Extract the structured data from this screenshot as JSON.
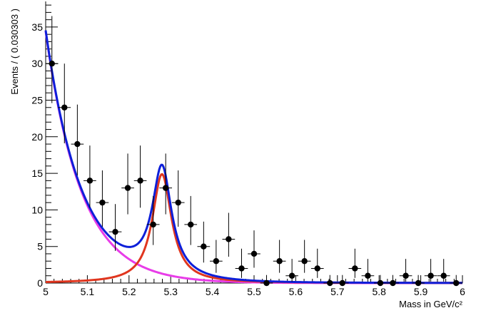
{
  "chart_data": {
    "type": "scatter",
    "title": "",
    "xlabel": "Mass in GeV/c²",
    "ylabel": "Events / ( 0.030303 )",
    "xlim": [
      5,
      6
    ],
    "ylim": [
      0,
      38.5
    ],
    "x_tick_labels": [
      "5",
      "5.1",
      "5.2",
      "5.3",
      "5.4",
      "5.5",
      "5.6",
      "5.7",
      "5.8",
      "5.9",
      "6"
    ],
    "y_tick_labels": [
      "0",
      "5",
      "10",
      "15",
      "20",
      "25",
      "30",
      "35"
    ],
    "grid": false,
    "legend": "none",
    "bin_half_width": 0.01515,
    "data_points": {
      "x": [
        5.015,
        5.045,
        5.076,
        5.106,
        5.136,
        5.167,
        5.197,
        5.227,
        5.258,
        5.288,
        5.318,
        5.348,
        5.379,
        5.409,
        5.439,
        5.47,
        5.5,
        5.53,
        5.561,
        5.591,
        5.621,
        5.652,
        5.682,
        5.712,
        5.742,
        5.773,
        5.803,
        5.833,
        5.864,
        5.894,
        5.924,
        5.955,
        5.985
      ],
      "y": [
        30,
        24,
        19,
        14,
        11,
        7,
        13,
        14,
        8,
        13,
        11,
        8,
        5,
        3,
        6,
        2,
        4,
        0,
        3,
        1,
        3,
        2,
        0,
        0,
        2,
        1,
        0,
        0,
        1,
        0,
        1,
        1,
        0
      ],
      "yerr_low": [
        5.4,
        4.9,
        4.3,
        3.7,
        3.3,
        2.6,
        3.6,
        3.7,
        2.8,
        3.6,
        3.3,
        2.8,
        2.2,
        1.6,
        2.4,
        1.3,
        1.9,
        0,
        1.6,
        0.8,
        1.6,
        1.3,
        0,
        0,
        1.3,
        0.8,
        0,
        0,
        0.8,
        0,
        0.8,
        0.8,
        0
      ],
      "yerr_high": [
        6.5,
        6.0,
        5.4,
        4.8,
        4.4,
        3.8,
        4.7,
        4.8,
        3.9,
        4.7,
        4.4,
        3.9,
        3.4,
        2.9,
        3.6,
        2.7,
        3.2,
        1.1,
        2.9,
        2.3,
        2.9,
        2.7,
        1.1,
        1.1,
        2.7,
        2.3,
        1.1,
        1.1,
        2.3,
        1.1,
        2.3,
        2.3,
        1.1
      ]
    },
    "curves": [
      {
        "role": "total",
        "color": "#0d1fd9"
      },
      {
        "role": "signal",
        "color": "#e0361f"
      },
      {
        "role": "background",
        "color": "#e83ce8"
      }
    ],
    "curve_model": {
      "background": {
        "amplitude": 34.4,
        "x0": 5.0,
        "decay": 0.085
      },
      "signal": {
        "peak": 14.9,
        "mean": 5.279,
        "hwhm": 0.028
      }
    },
    "colors": {
      "markers": "#000000",
      "axes": "#000000",
      "background": "#ffffff"
    }
  }
}
